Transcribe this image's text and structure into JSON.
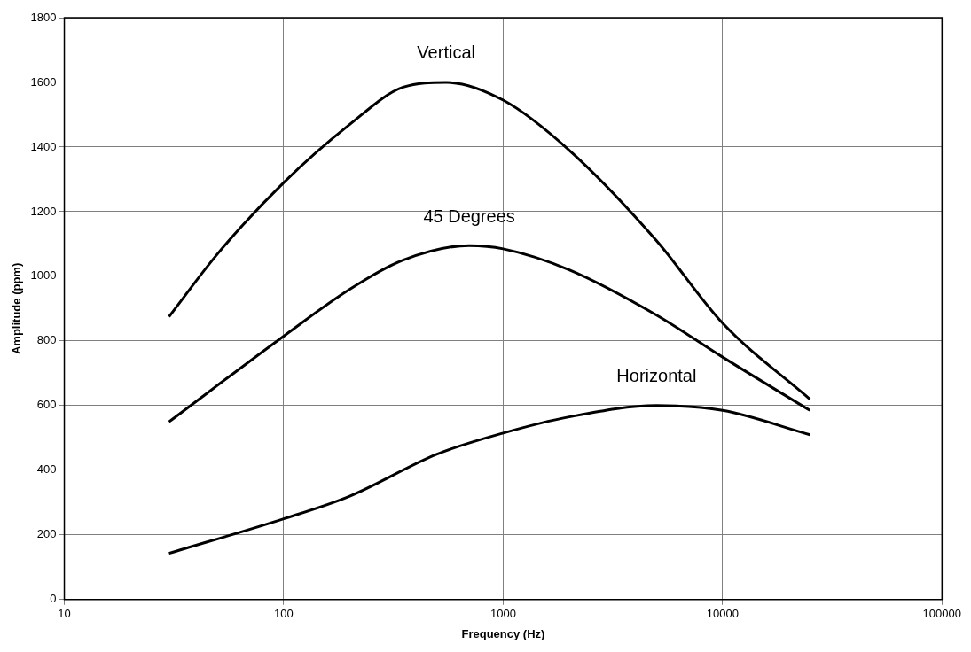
{
  "chart_data": {
    "type": "line",
    "xlabel": "Frequency (Hz)",
    "ylabel": "Amplitude (ppm)",
    "log": "x",
    "grid": true,
    "legend": false,
    "marker": "none",
    "line_style": "solid",
    "xlim": [
      10,
      100000
    ],
    "xticks": [
      10,
      100,
      1000,
      10000,
      100000
    ],
    "ylim": [
      0,
      1800
    ],
    "yticks": [
      0,
      200,
      400,
      600,
      800,
      1000,
      1200,
      1400,
      1600,
      1800
    ],
    "series": [
      {
        "name": "Vertical",
        "color": "#000000",
        "x": [
          30,
          50,
          100,
          200,
          350,
          550,
          1000,
          2000,
          5000,
          10000,
          25000
        ],
        "values": [
          875,
          1070,
          1290,
          1470,
          1585,
          1600,
          1545,
          1390,
          1110,
          855,
          620
        ]
      },
      {
        "name": "45 Degrees",
        "color": "#000000",
        "x": [
          30,
          100,
          200,
          350,
          700,
          1000,
          2000,
          5000,
          10000,
          25000
        ],
        "values": [
          550,
          815,
          960,
          1050,
          1095,
          1085,
          1020,
          880,
          750,
          585
        ]
      },
      {
        "name": "Horizontal",
        "color": "#000000",
        "x": [
          30,
          100,
          200,
          500,
          1000,
          2000,
          5000,
          10000,
          25000
        ],
        "values": [
          143,
          250,
          320,
          450,
          515,
          565,
          600,
          585,
          510
        ]
      }
    ]
  }
}
